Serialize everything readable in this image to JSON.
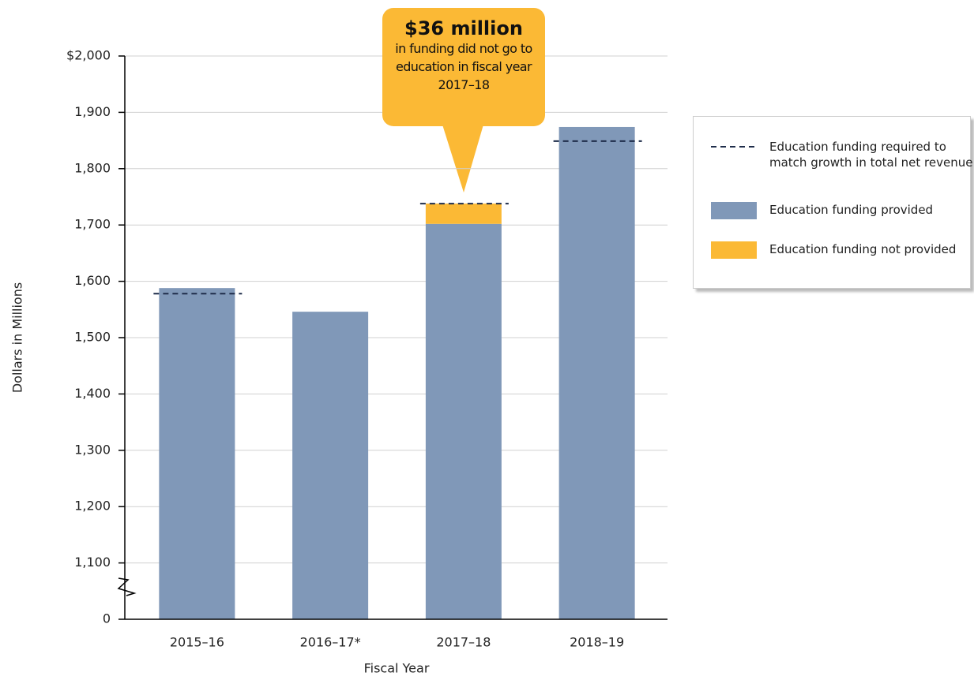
{
  "chart_data": {
    "type": "bar",
    "stacked": true,
    "x_label": "Fiscal Year",
    "y_label": "Dollars in Millions",
    "categories": [
      "2015–16",
      "2016–17*",
      "2017–18",
      "2018–19"
    ],
    "series": [
      {
        "name": "Education funding required to match growth in total net revenue",
        "style": "dashed",
        "color": "#1f2d4a",
        "values": [
          1578,
          null,
          1738,
          1849
        ]
      },
      {
        "name": "Education funding provided",
        "style": "bar",
        "color": "#8098b8",
        "values": [
          1588,
          1546,
          1702,
          1874
        ]
      },
      {
        "name": "Education funding not provided",
        "style": "bar",
        "color": "#fbb935",
        "values": [
          null,
          null,
          36,
          null
        ]
      }
    ],
    "ylim": [
      0,
      2000
    ],
    "y_break": [
      0,
      1000
    ],
    "yticks": [
      0,
      {
        "value": 1100,
        "label": "1,100"
      },
      {
        "value": 1200,
        "label": "1,200"
      },
      {
        "value": 1300,
        "label": "1,300"
      },
      {
        "value": 1400,
        "label": "1,400"
      },
      {
        "value": 1500,
        "label": "1,500"
      },
      {
        "value": 1600,
        "label": "1,600"
      },
      {
        "value": 1700,
        "label": "1,700"
      },
      {
        "value": 1800,
        "label": "1,800"
      },
      {
        "value": 1900,
        "label": "1,900"
      },
      {
        "value": 2000,
        "label": "$2,000"
      }
    ],
    "grid": true,
    "annotation": {
      "title": "$36 million",
      "text": "in funding did not go to education in fiscal year 2017–18",
      "color": "#fbb935"
    }
  }
}
